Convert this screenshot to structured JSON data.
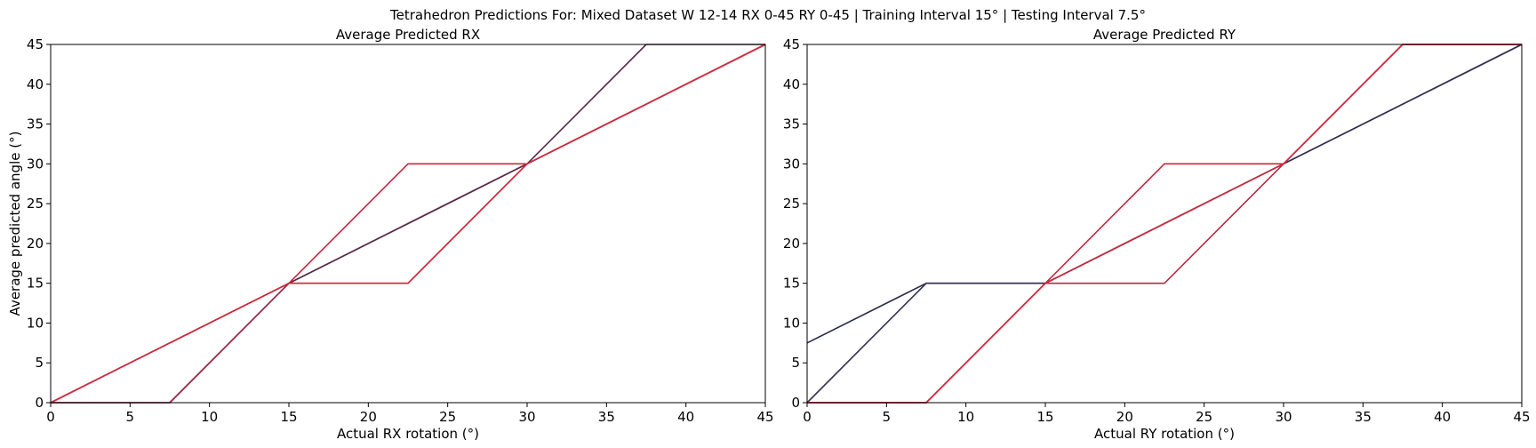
{
  "suptitle": "Tetrahedron Predictions For: Mixed Dataset W 12-14 RX 0-45 RY 0-45 | Training Interval 15° | Testing Interval 7.5°",
  "chart_data": [
    {
      "type": "line",
      "title": "Average Predicted RX",
      "xlabel": "Actual RX rotation (°)",
      "ylabel": "Average predicted angle (°)",
      "xlim": [
        0,
        45
      ],
      "ylim": [
        0,
        45
      ],
      "xticks": [
        0,
        5,
        10,
        15,
        20,
        25,
        30,
        35,
        40,
        45
      ],
      "yticks": [
        0,
        5,
        10,
        15,
        20,
        25,
        30,
        35,
        40,
        45
      ],
      "grid": false,
      "series": [
        {
          "color": "#2a2d4a",
          "x": [
            0,
            7.5,
            15,
            22.5,
            30,
            37.5,
            45
          ],
          "y": [
            0,
            7.5,
            15,
            22.5,
            30,
            37.5,
            45
          ]
        },
        {
          "color": "#5a2a48",
          "x": [
            0,
            7.5,
            15,
            22.5,
            30,
            37.5,
            45
          ],
          "y": [
            0,
            0,
            15,
            22.5,
            30,
            45,
            45
          ]
        },
        {
          "color": "#9a2a45",
          "x": [
            0,
            7.5,
            15,
            22.5,
            30,
            37.5,
            45
          ],
          "y": [
            0,
            0,
            15,
            15,
            30,
            37.5,
            45
          ]
        },
        {
          "color": "#c8263c",
          "x": [
            0,
            7.5,
            15,
            22.5,
            30,
            37.5,
            45
          ],
          "y": [
            0,
            7.5,
            15,
            30,
            30,
            37.5,
            45
          ]
        },
        {
          "color": "#d42a3e",
          "x": [
            0,
            7.5,
            15,
            22.5,
            30,
            37.5,
            45
          ],
          "y": [
            0,
            7.5,
            15,
            15,
            30,
            37.5,
            45
          ]
        }
      ]
    },
    {
      "type": "line",
      "title": "Average Predicted RY",
      "xlabel": "Actual RY rotation (°)",
      "ylabel": "",
      "xlim": [
        0,
        45
      ],
      "ylim": [
        0,
        45
      ],
      "xticks": [
        0,
        5,
        10,
        15,
        20,
        25,
        30,
        35,
        40,
        45
      ],
      "yticks": [
        0,
        5,
        10,
        15,
        20,
        25,
        30,
        35,
        40,
        45
      ],
      "grid": false,
      "series": [
        {
          "color": "#2a2d4a",
          "x": [
            0,
            7.5,
            15,
            22.5,
            30,
            37.5,
            45
          ],
          "y": [
            7.5,
            15,
            15,
            22.5,
            30,
            37.5,
            45
          ]
        },
        {
          "color": "#34304f",
          "x": [
            0,
            7.5,
            15,
            22.5,
            30,
            37.5,
            45
          ],
          "y": [
            0,
            15,
            15,
            22.5,
            30,
            37.5,
            45
          ]
        },
        {
          "color": "#c8263c",
          "x": [
            0,
            7.5,
            15,
            22.5,
            30,
            37.5,
            45
          ],
          "y": [
            0,
            0,
            15,
            30,
            30,
            45,
            45
          ]
        },
        {
          "color": "#b8283f",
          "x": [
            0,
            7.5,
            15,
            22.5,
            30,
            37.5,
            45
          ],
          "y": [
            0,
            0,
            15,
            15,
            30,
            45,
            45
          ]
        },
        {
          "color": "#d42a3e",
          "x": [
            0,
            7.5,
            15,
            22.5,
            30,
            37.5,
            45
          ],
          "y": [
            0,
            0,
            15,
            22.5,
            30,
            45,
            45
          ]
        }
      ]
    }
  ]
}
